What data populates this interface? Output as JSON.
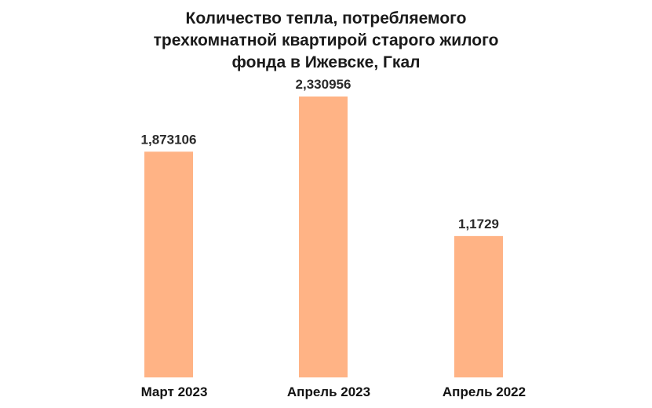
{
  "chart_data": {
    "type": "bar",
    "title": "Количество тепла, потребляемого\nтрехкомнатной квартирой старого жилого\nфонда в Ижевске, Гкал",
    "categories": [
      "Март 2023",
      "Апрель 2023",
      "Апрель 2022"
    ],
    "values": [
      1.873106,
      2.330956,
      1.1729
    ],
    "data_labels": [
      "1,873106",
      "2,330956",
      "1,1729"
    ],
    "ylim": [
      0,
      2.330956
    ],
    "grid": false,
    "legend": "none",
    "colors": {
      "bar": "#FFB385"
    }
  }
}
